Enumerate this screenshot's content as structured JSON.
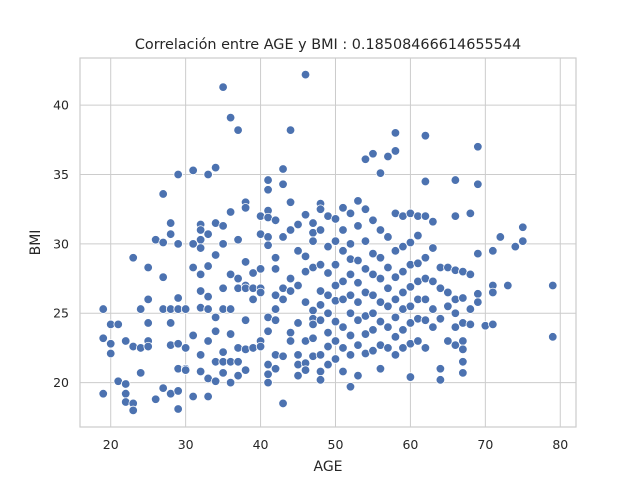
{
  "chart_data": {
    "type": "scatter",
    "title": "Correlación entre AGE y BMI : 0.18508466614655544",
    "xlabel": "AGE",
    "ylabel": "BMI",
    "xlim": [
      15.9,
      82.1
    ],
    "ylim": [
      16.8,
      43.4
    ],
    "xticks": [
      20,
      30,
      40,
      50,
      60,
      70,
      80
    ],
    "yticks": [
      20,
      25,
      30,
      35,
      40
    ],
    "grid": true,
    "color": "#4c72b0",
    "points": [
      [
        19,
        25.3
      ],
      [
        19,
        23.2
      ],
      [
        19,
        19.2
      ],
      [
        20,
        24.2
      ],
      [
        20,
        22.8
      ],
      [
        20,
        22.1
      ],
      [
        21,
        24.2
      ],
      [
        21,
        20.1
      ],
      [
        22,
        23.0
      ],
      [
        22,
        19.9
      ],
      [
        22,
        19.2
      ],
      [
        22,
        18.6
      ],
      [
        23,
        29.0
      ],
      [
        23,
        22.6
      ],
      [
        23,
        18.5
      ],
      [
        23,
        18.0
      ],
      [
        24,
        25.3
      ],
      [
        24,
        22.5
      ],
      [
        24,
        20.7
      ],
      [
        25,
        28.3
      ],
      [
        25,
        26.0
      ],
      [
        25,
        24.3
      ],
      [
        25,
        23.0
      ],
      [
        25,
        22.6
      ],
      [
        26,
        30.3
      ],
      [
        26,
        18.8
      ],
      [
        27,
        33.6
      ],
      [
        27,
        30.1
      ],
      [
        27,
        27.6
      ],
      [
        27,
        25.3
      ],
      [
        27,
        19.6
      ],
      [
        28,
        31.5
      ],
      [
        28,
        30.7
      ],
      [
        28,
        25.3
      ],
      [
        28,
        24.3
      ],
      [
        28,
        22.7
      ],
      [
        28,
        19.2
      ],
      [
        29,
        35.0
      ],
      [
        29,
        30.0
      ],
      [
        29,
        26.1
      ],
      [
        29,
        25.3
      ],
      [
        29,
        22.8
      ],
      [
        29,
        21.0
      ],
      [
        29,
        19.4
      ],
      [
        29,
        18.1
      ],
      [
        30,
        25.3
      ],
      [
        30,
        22.5
      ],
      [
        30,
        21.0
      ],
      [
        30,
        20.9
      ],
      [
        31,
        35.3
      ],
      [
        31,
        30.0
      ],
      [
        31,
        28.3
      ],
      [
        31,
        23.4
      ],
      [
        31,
        19.0
      ],
      [
        32,
        31.4
      ],
      [
        32,
        31.0
      ],
      [
        32,
        30.3
      ],
      [
        32,
        29.7
      ],
      [
        32,
        27.8
      ],
      [
        32,
        26.6
      ],
      [
        32,
        25.4
      ],
      [
        32,
        22.0
      ],
      [
        32,
        20.8
      ],
      [
        33,
        35.0
      ],
      [
        33,
        30.7
      ],
      [
        33,
        28.4
      ],
      [
        33,
        26.2
      ],
      [
        33,
        25.3
      ],
      [
        33,
        23.0
      ],
      [
        33,
        20.3
      ],
      [
        33,
        19.0
      ],
      [
        34,
        35.5
      ],
      [
        34,
        31.5
      ],
      [
        34,
        29.2
      ],
      [
        34,
        24.7
      ],
      [
        34,
        23.7
      ],
      [
        34,
        21.5
      ],
      [
        34,
        20.1
      ],
      [
        35,
        41.3
      ],
      [
        35,
        31.3
      ],
      [
        35,
        30.0
      ],
      [
        35,
        26.8
      ],
      [
        35,
        25.3
      ],
      [
        35,
        22.2
      ],
      [
        35,
        21.5
      ],
      [
        35,
        20.7
      ],
      [
        36,
        39.1
      ],
      [
        36,
        32.3
      ],
      [
        36,
        27.8
      ],
      [
        36,
        25.3
      ],
      [
        36,
        23.5
      ],
      [
        36,
        21.5
      ],
      [
        36,
        20.0
      ],
      [
        37,
        38.2
      ],
      [
        37,
        30.3
      ],
      [
        37,
        27.5
      ],
      [
        37,
        26.8
      ],
      [
        37,
        22.5
      ],
      [
        37,
        21.5
      ],
      [
        37,
        20.5
      ],
      [
        38,
        33.0
      ],
      [
        38,
        32.6
      ],
      [
        38,
        28.7
      ],
      [
        38,
        27.0
      ],
      [
        38,
        26.8
      ],
      [
        38,
        24.5
      ],
      [
        38,
        22.4
      ],
      [
        38,
        20.9
      ],
      [
        39,
        27.9
      ],
      [
        39,
        26.8
      ],
      [
        39,
        26.0
      ],
      [
        39,
        22.5
      ],
      [
        40,
        32.0
      ],
      [
        40,
        30.7
      ],
      [
        40,
        28.2
      ],
      [
        40,
        26.8
      ],
      [
        40,
        26.5
      ],
      [
        40,
        23.0
      ],
      [
        40,
        22.6
      ],
      [
        41,
        34.6
      ],
      [
        41,
        33.9
      ],
      [
        41,
        32.4
      ],
      [
        41,
        31.9
      ],
      [
        41,
        30.5
      ],
      [
        41,
        29.9
      ],
      [
        41,
        24.7
      ],
      [
        41,
        23.7
      ],
      [
        41,
        21.3
      ],
      [
        41,
        20.6
      ],
      [
        41,
        20.0
      ],
      [
        42,
        31.7
      ],
      [
        42,
        29.0
      ],
      [
        42,
        28.2
      ],
      [
        42,
        26.3
      ],
      [
        42,
        25.3
      ],
      [
        42,
        24.5
      ],
      [
        42,
        22.0
      ],
      [
        42,
        21.0
      ],
      [
        43,
        35.4
      ],
      [
        43,
        34.3
      ],
      [
        43,
        30.5
      ],
      [
        43,
        26.8
      ],
      [
        43,
        26.0
      ],
      [
        43,
        21.9
      ],
      [
        43,
        18.5
      ],
      [
        44,
        38.2
      ],
      [
        44,
        33.0
      ],
      [
        44,
        31.0
      ],
      [
        44,
        27.5
      ],
      [
        44,
        26.6
      ],
      [
        44,
        23.6
      ],
      [
        44,
        23.0
      ],
      [
        45,
        31.4
      ],
      [
        45,
        29.5
      ],
      [
        45,
        27.0
      ],
      [
        45,
        24.3
      ],
      [
        45,
        22.0
      ],
      [
        45,
        21.3
      ],
      [
        45,
        20.5
      ],
      [
        46,
        42.2
      ],
      [
        46,
        32.1
      ],
      [
        46,
        29.1
      ],
      [
        46,
        28.0
      ],
      [
        46,
        25.8
      ],
      [
        46,
        23.0
      ],
      [
        46,
        21.4
      ],
      [
        46,
        20.9
      ],
      [
        47,
        31.5
      ],
      [
        47,
        30.8
      ],
      [
        47,
        30.2
      ],
      [
        47,
        28.3
      ],
      [
        47,
        25.2
      ],
      [
        47,
        24.6
      ],
      [
        47,
        24.2
      ],
      [
        47,
        23.2
      ],
      [
        47,
        21.9
      ],
      [
        48,
        32.9
      ],
      [
        48,
        32.5
      ],
      [
        48,
        31.0
      ],
      [
        48,
        28.5
      ],
      [
        48,
        26.6
      ],
      [
        48,
        25.6
      ],
      [
        48,
        24.5
      ],
      [
        48,
        22.0
      ],
      [
        48,
        20.8
      ],
      [
        48,
        20.2
      ],
      [
        49,
        32.0
      ],
      [
        49,
        29.8
      ],
      [
        49,
        27.9
      ],
      [
        49,
        26.3
      ],
      [
        49,
        25.0
      ],
      [
        49,
        23.6
      ],
      [
        49,
        22.6
      ],
      [
        49,
        21.3
      ],
      [
        50,
        31.8
      ],
      [
        50,
        30.2
      ],
      [
        50,
        28.5
      ],
      [
        50,
        27.0
      ],
      [
        50,
        25.9
      ],
      [
        50,
        24.4
      ],
      [
        50,
        23.0
      ],
      [
        50,
        21.7
      ],
      [
        51,
        32.6
      ],
      [
        51,
        31.0
      ],
      [
        51,
        29.5
      ],
      [
        51,
        27.3
      ],
      [
        51,
        26.0
      ],
      [
        51,
        24.0
      ],
      [
        51,
        22.5
      ],
      [
        51,
        20.8
      ],
      [
        52,
        32.2
      ],
      [
        52,
        30.0
      ],
      [
        52,
        28.9
      ],
      [
        52,
        27.8
      ],
      [
        52,
        26.3
      ],
      [
        52,
        25.0
      ],
      [
        52,
        23.4
      ],
      [
        52,
        22.0
      ],
      [
        52,
        19.7
      ],
      [
        53,
        33.1
      ],
      [
        53,
        31.3
      ],
      [
        53,
        28.8
      ],
      [
        53,
        27.2
      ],
      [
        53,
        25.8
      ],
      [
        53,
        24.5
      ],
      [
        53,
        22.7
      ],
      [
        53,
        20.5
      ],
      [
        54,
        36.1
      ],
      [
        54,
        32.5
      ],
      [
        54,
        30.2
      ],
      [
        54,
        28.2
      ],
      [
        54,
        26.5
      ],
      [
        54,
        24.8
      ],
      [
        54,
        23.5
      ],
      [
        54,
        22.1
      ],
      [
        55,
        36.5
      ],
      [
        55,
        31.7
      ],
      [
        55,
        29.3
      ],
      [
        55,
        27.8
      ],
      [
        55,
        26.3
      ],
      [
        55,
        25.0
      ],
      [
        55,
        23.8
      ],
      [
        55,
        22.3
      ],
      [
        56,
        35.1
      ],
      [
        56,
        31.0
      ],
      [
        56,
        29.0
      ],
      [
        56,
        27.5
      ],
      [
        56,
        25.8
      ],
      [
        56,
        24.4
      ],
      [
        56,
        22.7
      ],
      [
        56,
        21.0
      ],
      [
        57,
        36.3
      ],
      [
        57,
        30.5
      ],
      [
        57,
        28.3
      ],
      [
        57,
        26.8
      ],
      [
        57,
        25.5
      ],
      [
        57,
        24.0
      ],
      [
        57,
        22.5
      ],
      [
        58,
        38.0
      ],
      [
        58,
        36.7
      ],
      [
        58,
        32.2
      ],
      [
        58,
        29.5
      ],
      [
        58,
        27.6
      ],
      [
        58,
        26.0
      ],
      [
        58,
        24.7
      ],
      [
        58,
        23.3
      ],
      [
        58,
        22.0
      ],
      [
        59,
        32.0
      ],
      [
        59,
        29.8
      ],
      [
        59,
        28.0
      ],
      [
        59,
        26.5
      ],
      [
        59,
        25.3
      ],
      [
        59,
        23.8
      ],
      [
        59,
        22.5
      ],
      [
        60,
        32.2
      ],
      [
        60,
        30.1
      ],
      [
        60,
        28.5
      ],
      [
        60,
        26.9
      ],
      [
        60,
        25.5
      ],
      [
        60,
        24.3
      ],
      [
        60,
        22.8
      ],
      [
        60,
        20.4
      ],
      [
        61,
        32.0
      ],
      [
        61,
        30.6
      ],
      [
        61,
        28.6
      ],
      [
        61,
        27.3
      ],
      [
        61,
        26.0
      ],
      [
        61,
        24.6
      ],
      [
        61,
        23.0
      ],
      [
        62,
        37.8
      ],
      [
        62,
        34.5
      ],
      [
        62,
        32.0
      ],
      [
        62,
        29.0
      ],
      [
        62,
        27.5
      ],
      [
        62,
        26.0
      ],
      [
        62,
        24.5
      ],
      [
        62,
        22.5
      ],
      [
        63,
        31.6
      ],
      [
        63,
        29.7
      ],
      [
        63,
        27.3
      ],
      [
        63,
        25.3
      ],
      [
        63,
        24.0
      ],
      [
        64,
        28.3
      ],
      [
        64,
        26.8
      ],
      [
        64,
        24.6
      ],
      [
        64,
        21.0
      ],
      [
        64,
        20.2
      ],
      [
        65,
        28.3
      ],
      [
        65,
        26.5
      ],
      [
        65,
        25.5
      ],
      [
        65,
        23.0
      ],
      [
        66,
        34.6
      ],
      [
        66,
        32.0
      ],
      [
        66,
        28.1
      ],
      [
        66,
        26.0
      ],
      [
        66,
        25.0
      ],
      [
        66,
        24.0
      ],
      [
        66,
        22.7
      ],
      [
        67,
        28.0
      ],
      [
        67,
        26.1
      ],
      [
        67,
        24.3
      ],
      [
        67,
        23.0
      ],
      [
        67,
        22.4
      ],
      [
        67,
        21.5
      ],
      [
        67,
        20.7
      ],
      [
        68,
        32.2
      ],
      [
        68,
        27.8
      ],
      [
        68,
        25.3
      ],
      [
        68,
        24.2
      ],
      [
        69,
        37.0
      ],
      [
        69,
        34.3
      ],
      [
        69,
        29.3
      ],
      [
        69,
        26.4
      ],
      [
        69,
        25.8
      ],
      [
        70,
        24.1
      ],
      [
        71,
        29.5
      ],
      [
        71,
        27.0
      ],
      [
        71,
        26.5
      ],
      [
        71,
        24.2
      ],
      [
        72,
        30.5
      ],
      [
        73,
        27.0
      ],
      [
        74,
        29.8
      ],
      [
        75,
        31.2
      ],
      [
        75,
        30.2
      ],
      [
        79,
        27.0
      ],
      [
        79,
        23.3
      ]
    ]
  }
}
